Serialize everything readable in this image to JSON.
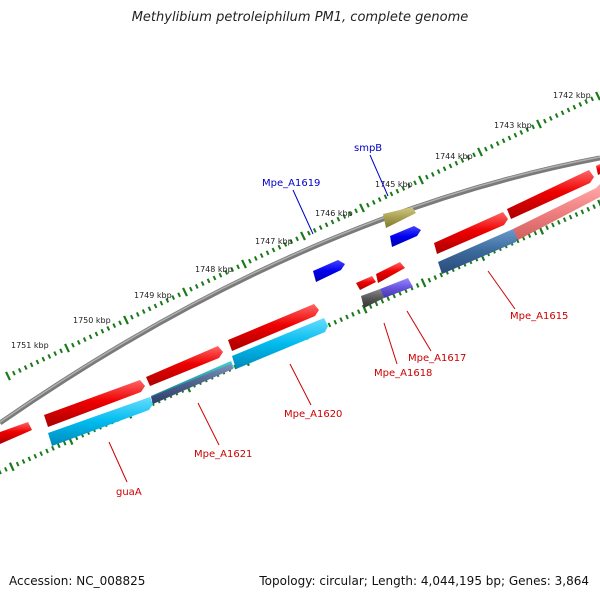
{
  "title": "Methylibium petroleiphilum PM1, complete genome",
  "footer": {
    "accession": "Accession: NC_008825",
    "topology": "Topology: circular; Length: 4,044,195 bp; Genes: 3,864"
  },
  "backbone_color": "#808080",
  "tick_color": "#1a7a1a",
  "kbp_labels": [
    "1742 kbp",
    "1743 kbp",
    "1744 kbp",
    "1745 kbp",
    "1746 kbp",
    "1747 kbp",
    "1748 kbp",
    "1749 kbp",
    "1750 kbp",
    "1751 kbp"
  ],
  "gene_labels": {
    "smpB": "smpB",
    "Mpe_A1619": "Mpe_A1619",
    "Mpe_A1615": "Mpe_A1615",
    "Mpe_A1617": "Mpe_A1617",
    "Mpe_A1618": "Mpe_A1618",
    "Mpe_A1620": "Mpe_A1620",
    "Mpe_A1621": "Mpe_A1621",
    "guaA": "guaA"
  },
  "colors": {
    "red_label": "#cc0000",
    "blue_label": "#0000cc",
    "red_feature": "#ee0000",
    "cyan_feature": "#00bbee",
    "blue_feature": "#0000ee",
    "olive_feature": "#a8a050"
  }
}
